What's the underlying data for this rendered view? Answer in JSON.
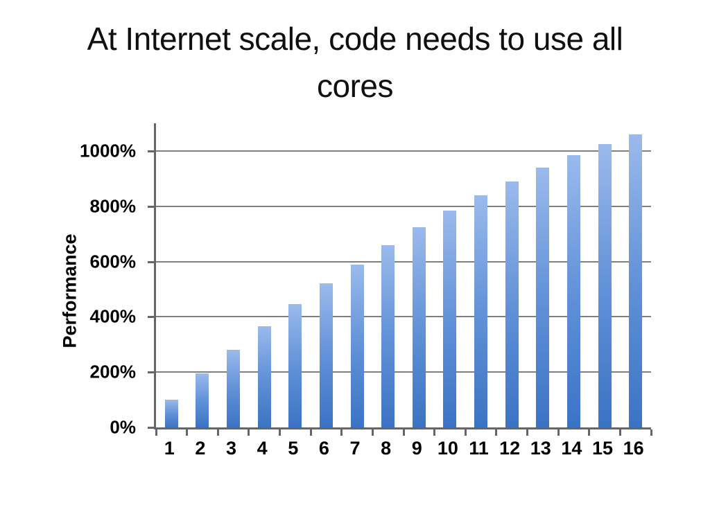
{
  "slide": {
    "title_lines": [
      "At Internet scale, code needs to use all",
      "cores"
    ]
  },
  "chart_data": {
    "type": "bar",
    "title": "At Internet scale, code needs to use all cores",
    "xlabel": "",
    "ylabel": "Performance",
    "unit": "%",
    "categories": [
      "1",
      "2",
      "3",
      "4",
      "5",
      "6",
      "7",
      "8",
      "9",
      "10",
      "11",
      "12",
      "13",
      "14",
      "15",
      "16"
    ],
    "values": [
      100,
      195,
      280,
      365,
      445,
      520,
      590,
      660,
      725,
      785,
      840,
      890,
      940,
      985,
      1025,
      1060
    ],
    "y_ticks": [
      {
        "value": 0,
        "label": "0%"
      },
      {
        "value": 200,
        "label": "200%"
      },
      {
        "value": 400,
        "label": "400%"
      },
      {
        "value": 600,
        "label": "600%"
      },
      {
        "value": 800,
        "label": "800%"
      },
      {
        "value": 1000,
        "label": "1000%"
      }
    ],
    "ylim": [
      0,
      1100
    ],
    "grid": true,
    "legend": "none",
    "colors": {
      "bar_gradient": [
        "#9bbaec",
        "#6292d8",
        "#3b73c4"
      ],
      "gridline": "#7f7f7f",
      "axis": "#666666",
      "text": "#000000"
    }
  }
}
